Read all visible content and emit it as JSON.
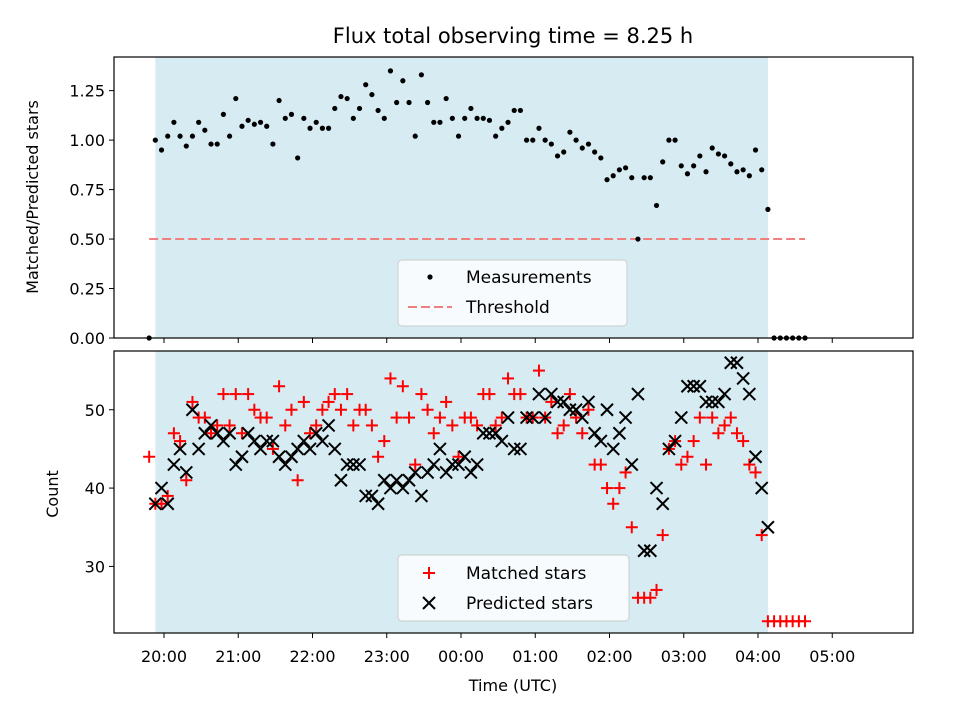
{
  "chart_data": {
    "type": "scatter",
    "title": "Flux total observing time = 8.25 h",
    "xlabel": "Time (UTC)",
    "x_ticks": [
      "20:00",
      "21:00",
      "22:00",
      "23:00",
      "00:00",
      "01:00",
      "02:00",
      "03:00",
      "04:00",
      "05:00"
    ],
    "colors": {
      "shade": "#add8e6",
      "measurements": "#000000",
      "threshold": "#f08080",
      "matched": "#ff0000",
      "predicted": "#000000"
    },
    "top": {
      "ylabel": "Matched/Predicted stars",
      "ylim": [
        0,
        1.42
      ],
      "yticks": [
        "0.00",
        "0.25",
        "0.50",
        "0.75",
        "1.00",
        "1.25"
      ],
      "threshold": 0.5,
      "legend_position": "lower center",
      "legend": [
        "Measurements",
        "Threshold"
      ],
      "shaded_span": [
        "19:53",
        "04:08"
      ],
      "measurements": [
        [
          "19:48",
          0.0
        ],
        [
          "19:53",
          1.0
        ],
        [
          "19:58",
          0.95
        ],
        [
          "20:03",
          1.02
        ],
        [
          "20:08",
          1.09
        ],
        [
          "20:13",
          1.02
        ],
        [
          "20:18",
          0.97
        ],
        [
          "20:23",
          1.02
        ],
        [
          "20:28",
          1.09
        ],
        [
          "20:33",
          1.05
        ],
        [
          "20:38",
          0.98
        ],
        [
          "20:43",
          0.98
        ],
        [
          "20:48",
          1.13
        ],
        [
          "20:53",
          1.02
        ],
        [
          "20:58",
          1.21
        ],
        [
          "21:03",
          1.07
        ],
        [
          "21:08",
          1.1
        ],
        [
          "21:13",
          1.08
        ],
        [
          "21:18",
          1.09
        ],
        [
          "21:23",
          1.07
        ],
        [
          "21:28",
          0.98
        ],
        [
          "21:33",
          1.2
        ],
        [
          "21:38",
          1.11
        ],
        [
          "21:43",
          1.13
        ],
        [
          "21:48",
          0.91
        ],
        [
          "21:53",
          1.11
        ],
        [
          "21:58",
          1.06
        ],
        [
          "22:03",
          1.09
        ],
        [
          "22:08",
          1.06
        ],
        [
          "22:13",
          1.06
        ],
        [
          "22:18",
          1.16
        ],
        [
          "22:23",
          1.22
        ],
        [
          "22:28",
          1.21
        ],
        [
          "22:33",
          1.11
        ],
        [
          "22:38",
          1.16
        ],
        [
          "22:43",
          1.28
        ],
        [
          "22:48",
          1.23
        ],
        [
          "22:53",
          1.15
        ],
        [
          "22:58",
          1.11
        ],
        [
          "23:03",
          1.35
        ],
        [
          "23:08",
          1.19
        ],
        [
          "23:13",
          1.3
        ],
        [
          "23:18",
          1.19
        ],
        [
          "23:23",
          1.02
        ],
        [
          "23:28",
          1.33
        ],
        [
          "23:33",
          1.19
        ],
        [
          "23:38",
          1.09
        ],
        [
          "23:43",
          1.09
        ],
        [
          "23:48",
          1.21
        ],
        [
          "23:53",
          1.11
        ],
        [
          "23:58",
          1.02
        ],
        [
          "00:03",
          1.11
        ],
        [
          "00:08",
          1.16
        ],
        [
          "00:13",
          1.11
        ],
        [
          "00:18",
          1.11
        ],
        [
          "00:23",
          1.1
        ],
        [
          "00:28",
          1.02
        ],
        [
          "00:33",
          1.06
        ],
        [
          "00:38",
          1.09
        ],
        [
          "00:43",
          1.15
        ],
        [
          "00:48",
          1.15
        ],
        [
          "00:53",
          1.0
        ],
        [
          "00:58",
          1.0
        ],
        [
          "01:03",
          1.06
        ],
        [
          "01:08",
          1.0
        ],
        [
          "01:13",
          0.98
        ],
        [
          "01:18",
          0.92
        ],
        [
          "01:23",
          0.94
        ],
        [
          "01:28",
          1.04
        ],
        [
          "01:33",
          1.0
        ],
        [
          "01:38",
          0.96
        ],
        [
          "01:43",
          0.98
        ],
        [
          "01:48",
          0.94
        ],
        [
          "01:53",
          0.91
        ],
        [
          "01:58",
          0.8
        ],
        [
          "02:03",
          0.82
        ],
        [
          "02:08",
          0.85
        ],
        [
          "02:13",
          0.86
        ],
        [
          "02:18",
          0.81
        ],
        [
          "02:23",
          0.5
        ],
        [
          "02:28",
          0.81
        ],
        [
          "02:33",
          0.81
        ],
        [
          "02:38",
          0.67
        ],
        [
          "02:43",
          0.89
        ],
        [
          "02:48",
          1.0
        ],
        [
          "02:53",
          1.0
        ],
        [
          "02:58",
          0.87
        ],
        [
          "03:03",
          0.83
        ],
        [
          "03:08",
          0.87
        ],
        [
          "03:13",
          0.92
        ],
        [
          "03:18",
          0.84
        ],
        [
          "03:23",
          0.96
        ],
        [
          "03:28",
          0.93
        ],
        [
          "03:33",
          0.92
        ],
        [
          "03:38",
          0.88
        ],
        [
          "03:43",
          0.84
        ],
        [
          "03:48",
          0.85
        ],
        [
          "03:53",
          0.82
        ],
        [
          "03:58",
          0.95
        ],
        [
          "04:03",
          0.85
        ],
        [
          "04:08",
          0.65
        ],
        [
          "04:13",
          0.0
        ],
        [
          "04:18",
          0.0
        ],
        [
          "04:23",
          0.0
        ],
        [
          "04:28",
          0.0
        ],
        [
          "04:33",
          0.0
        ],
        [
          "04:38",
          0.0
        ]
      ]
    },
    "bottom": {
      "ylabel": "Count",
      "ylim": [
        21.5,
        57.5
      ],
      "yticks": [
        "30",
        "40",
        "50"
      ],
      "legend_position": "lower center",
      "legend": [
        "Matched stars",
        "Predicted stars"
      ],
      "shaded_span": [
        "19:53",
        "04:08"
      ],
      "matched": [
        [
          "19:48",
          44
        ],
        [
          "19:53",
          38
        ],
        [
          "19:58",
          38
        ],
        [
          "20:03",
          39
        ],
        [
          "20:08",
          47
        ],
        [
          "20:13",
          46
        ],
        [
          "20:18",
          41
        ],
        [
          "20:23",
          51
        ],
        [
          "20:28",
          49
        ],
        [
          "20:33",
          49
        ],
        [
          "20:38",
          47
        ],
        [
          "20:43",
          48
        ],
        [
          "20:48",
          52
        ],
        [
          "20:53",
          48
        ],
        [
          "20:58",
          52
        ],
        [
          "21:03",
          47
        ],
        [
          "21:08",
          52
        ],
        [
          "21:13",
          50
        ],
        [
          "21:18",
          49
        ],
        [
          "21:23",
          49
        ],
        [
          "21:28",
          45
        ],
        [
          "21:33",
          53
        ],
        [
          "21:38",
          48
        ],
        [
          "21:43",
          50
        ],
        [
          "21:48",
          41
        ],
        [
          "21:53",
          51
        ],
        [
          "21:58",
          47
        ],
        [
          "22:03",
          48
        ],
        [
          "22:08",
          50
        ],
        [
          "22:13",
          51
        ],
        [
          "22:18",
          52
        ],
        [
          "22:23",
          50
        ],
        [
          "22:28",
          52
        ],
        [
          "22:33",
          48
        ],
        [
          "22:38",
          50
        ],
        [
          "22:43",
          50
        ],
        [
          "22:48",
          48
        ],
        [
          "22:53",
          44
        ],
        [
          "22:58",
          46
        ],
        [
          "23:03",
          54
        ],
        [
          "23:08",
          49
        ],
        [
          "23:13",
          53
        ],
        [
          "23:18",
          49
        ],
        [
          "23:23",
          43
        ],
        [
          "23:28",
          52
        ],
        [
          "23:33",
          50
        ],
        [
          "23:38",
          47
        ],
        [
          "23:43",
          49
        ],
        [
          "23:48",
          51
        ],
        [
          "23:53",
          48
        ],
        [
          "23:58",
          44
        ],
        [
          "00:03",
          49
        ],
        [
          "00:08",
          49
        ],
        [
          "00:13",
          48
        ],
        [
          "00:18",
          52
        ],
        [
          "00:23",
          52
        ],
        [
          "00:28",
          48
        ],
        [
          "00:33",
          49
        ],
        [
          "00:38",
          54
        ],
        [
          "00:43",
          52
        ],
        [
          "00:48",
          52
        ],
        [
          "00:53",
          49
        ],
        [
          "00:58",
          49
        ],
        [
          "01:03",
          55
        ],
        [
          "01:08",
          49
        ],
        [
          "01:13",
          51
        ],
        [
          "01:18",
          47
        ],
        [
          "01:23",
          48
        ],
        [
          "01:28",
          52
        ],
        [
          "01:33",
          49
        ],
        [
          "01:38",
          47
        ],
        [
          "01:43",
          50
        ],
        [
          "01:48",
          43
        ],
        [
          "01:53",
          43
        ],
        [
          "01:58",
          40
        ],
        [
          "02:03",
          38
        ],
        [
          "02:08",
          40
        ],
        [
          "02:13",
          42
        ],
        [
          "02:18",
          35
        ],
        [
          "02:23",
          26
        ],
        [
          "02:28",
          26
        ],
        [
          "02:33",
          26
        ],
        [
          "02:38",
          27
        ],
        [
          "02:43",
          34
        ],
        [
          "02:48",
          45
        ],
        [
          "02:53",
          46
        ],
        [
          "02:58",
          43
        ],
        [
          "03:03",
          44
        ],
        [
          "03:08",
          46
        ],
        [
          "03:13",
          49
        ],
        [
          "03:18",
          43
        ],
        [
          "03:23",
          49
        ],
        [
          "03:28",
          47
        ],
        [
          "03:33",
          48
        ],
        [
          "03:38",
          49
        ],
        [
          "03:43",
          47
        ],
        [
          "03:48",
          46
        ],
        [
          "03:53",
          43
        ],
        [
          "03:58",
          42
        ],
        [
          "04:03",
          34
        ],
        [
          "04:08",
          23
        ],
        [
          "04:13",
          23
        ],
        [
          "04:18",
          23
        ],
        [
          "04:23",
          23
        ],
        [
          "04:28",
          23
        ],
        [
          "04:33",
          23
        ],
        [
          "04:38",
          23
        ]
      ],
      "predicted": [
        [
          "19:53",
          38
        ],
        [
          "19:58",
          40
        ],
        [
          "20:03",
          38
        ],
        [
          "20:08",
          43
        ],
        [
          "20:13",
          45
        ],
        [
          "20:18",
          42
        ],
        [
          "20:23",
          50
        ],
        [
          "20:28",
          45
        ],
        [
          "20:33",
          47
        ],
        [
          "20:38",
          48
        ],
        [
          "20:43",
          47
        ],
        [
          "20:48",
          46
        ],
        [
          "20:53",
          47
        ],
        [
          "20:58",
          43
        ],
        [
          "21:03",
          44
        ],
        [
          "21:08",
          47
        ],
        [
          "21:13",
          46
        ],
        [
          "21:18",
          45
        ],
        [
          "21:23",
          46
        ],
        [
          "21:28",
          46
        ],
        [
          "21:33",
          44
        ],
        [
          "21:38",
          43
        ],
        [
          "21:43",
          44
        ],
        [
          "21:48",
          45
        ],
        [
          "21:53",
          46
        ],
        [
          "21:58",
          45
        ],
        [
          "22:03",
          47
        ],
        [
          "22:08",
          46
        ],
        [
          "22:13",
          48
        ],
        [
          "22:18",
          45
        ],
        [
          "22:23",
          41
        ],
        [
          "22:28",
          43
        ],
        [
          "22:33",
          43
        ],
        [
          "22:38",
          43
        ],
        [
          "22:43",
          39
        ],
        [
          "22:48",
          39
        ],
        [
          "22:53",
          38
        ],
        [
          "22:58",
          41
        ],
        [
          "23:03",
          40
        ],
        [
          "23:08",
          41
        ],
        [
          "23:13",
          40
        ],
        [
          "23:18",
          41
        ],
        [
          "23:23",
          42
        ],
        [
          "23:28",
          39
        ],
        [
          "23:33",
          42
        ],
        [
          "23:38",
          43
        ],
        [
          "23:43",
          45
        ],
        [
          "23:48",
          42
        ],
        [
          "23:53",
          43
        ],
        [
          "23:58",
          43
        ],
        [
          "00:03",
          44
        ],
        [
          "00:08",
          42
        ],
        [
          "00:13",
          43
        ],
        [
          "00:18",
          47
        ],
        [
          "00:23",
          47
        ],
        [
          "00:28",
          47
        ],
        [
          "00:33",
          46
        ],
        [
          "00:38",
          49
        ],
        [
          "00:43",
          45
        ],
        [
          "00:48",
          45
        ],
        [
          "00:53",
          49
        ],
        [
          "00:58",
          49
        ],
        [
          "01:03",
          52
        ],
        [
          "01:08",
          49
        ],
        [
          "01:13",
          52
        ],
        [
          "01:18",
          51
        ],
        [
          "01:23",
          51
        ],
        [
          "01:28",
          50
        ],
        [
          "01:33",
          50
        ],
        [
          "01:38",
          49
        ],
        [
          "01:43",
          51
        ],
        [
          "01:48",
          47
        ],
        [
          "01:53",
          46
        ],
        [
          "01:58",
          50
        ],
        [
          "02:03",
          45
        ],
        [
          "02:08",
          47
        ],
        [
          "02:13",
          49
        ],
        [
          "02:18",
          43
        ],
        [
          "02:23",
          52
        ],
        [
          "02:28",
          32
        ],
        [
          "02:33",
          32
        ],
        [
          "02:38",
          40
        ],
        [
          "02:43",
          38
        ],
        [
          "02:48",
          45
        ],
        [
          "02:53",
          46
        ],
        [
          "02:58",
          49
        ],
        [
          "03:03",
          53
        ],
        [
          "03:08",
          53
        ],
        [
          "03:13",
          53
        ],
        [
          "03:18",
          51
        ],
        [
          "03:23",
          51
        ],
        [
          "03:28",
          51
        ],
        [
          "03:33",
          52
        ],
        [
          "03:38",
          56
        ],
        [
          "03:43",
          56
        ],
        [
          "03:48",
          54
        ],
        [
          "03:53",
          52
        ],
        [
          "03:58",
          44
        ],
        [
          "04:03",
          40
        ],
        [
          "04:08",
          35
        ]
      ]
    }
  }
}
